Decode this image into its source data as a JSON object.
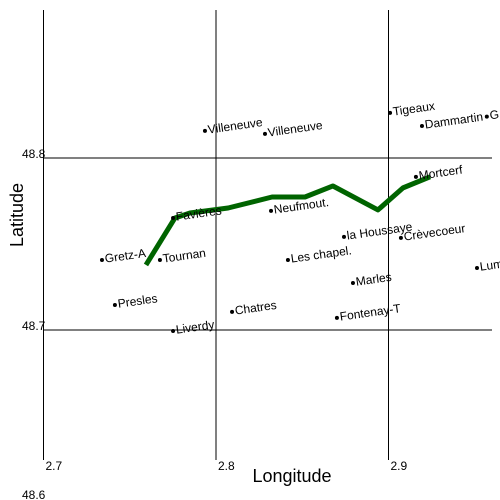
{
  "chart_data": {
    "type": "scatter",
    "xlabel": "Longitude",
    "ylabel": "Latitude",
    "xlim": [
      2.7,
      2.96
    ],
    "ylim": [
      48.6,
      48.886
    ],
    "xticks": [
      2.7,
      2.8,
      2.9
    ],
    "yticks": [
      48.6,
      48.7,
      48.8
    ],
    "grid": true,
    "points": {
      "names": [
        "Villeneuve",
        "Villeneuve",
        "Tigeaux",
        "Dammartin",
        "G",
        "Mortcerf",
        "Neufmout.",
        "Favières",
        "la Houssaye",
        "Crèvecoeur",
        "Gretz-A",
        "Tournan",
        "Les chapel.",
        "Lum",
        "Marles",
        "Presles",
        "Chatres",
        "Fontenay-T",
        "Liverdy"
      ],
      "x": [
        2.7936,
        2.8284,
        2.9009,
        2.9194,
        2.957,
        2.9159,
        2.8319,
        2.7751,
        2.8742,
        2.9072,
        2.7339,
        2.7675,
        2.8417,
        2.9513,
        2.8794,
        2.7414,
        2.8093,
        2.8701,
        2.7751
      ],
      "y": [
        48.8157,
        48.814,
        48.8262,
        48.8186,
        48.824,
        48.789,
        48.7692,
        48.7651,
        48.7541,
        48.7535,
        48.7407,
        48.7407,
        48.7407,
        48.736,
        48.7273,
        48.7145,
        48.7105,
        48.707,
        48.6994
      ],
      "color": "#000000"
    },
    "route": {
      "color": "#006400",
      "x": [
        2.7594,
        2.7762,
        2.7849,
        2.807,
        2.8325,
        2.8516,
        2.8678,
        2.8939,
        2.9084,
        2.9241
      ],
      "y": [
        48.7378,
        48.7651,
        48.768,
        48.7709,
        48.7773,
        48.7773,
        48.7837,
        48.7698,
        48.7826,
        48.789
      ]
    }
  }
}
